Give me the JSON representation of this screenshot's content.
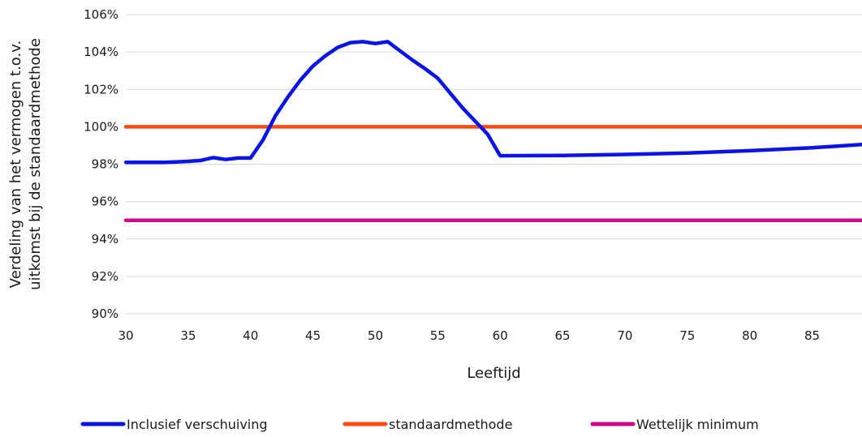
{
  "chart_data": {
    "type": "line",
    "title": "",
    "xlabel": "Leeftijd",
    "ylabel_lines": [
      "Verdeling van het vermogen t.o.v.",
      "uitkomst bij de standaardmethode"
    ],
    "xlim": [
      30,
      89
    ],
    "ylim": [
      90,
      106
    ],
    "x_ticks": [
      30,
      35,
      40,
      45,
      50,
      55,
      60,
      65,
      70,
      75,
      80,
      85
    ],
    "y_ticks": [
      90,
      92,
      94,
      96,
      98,
      100,
      102,
      104,
      106
    ],
    "y_tick_labels": [
      "90%",
      "92%",
      "94%",
      "96%",
      "98%",
      "100%",
      "102%",
      "104%",
      "106%"
    ],
    "grid": "horizontal",
    "legend_position": "bottom",
    "series": [
      {
        "name": "Inclusief verschuiving",
        "color": "#0a14e6",
        "x": [
          30,
          31,
          32,
          33,
          34,
          35,
          36,
          37,
          38,
          39,
          40,
          41,
          42,
          43,
          44,
          45,
          46,
          47,
          48,
          49,
          50,
          51,
          52,
          53,
          54,
          55,
          56,
          57,
          58,
          59,
          60,
          65,
          70,
          75,
          80,
          85,
          89
        ],
        "y": [
          98.1,
          98.1,
          98.1,
          98.1,
          98.12,
          98.15,
          98.2,
          98.35,
          98.25,
          98.33,
          98.33,
          99.3,
          100.6,
          101.6,
          102.5,
          103.25,
          103.8,
          104.25,
          104.5,
          104.55,
          104.45,
          104.55,
          104.05,
          103.55,
          103.1,
          102.6,
          101.8,
          101.0,
          100.3,
          99.6,
          98.45,
          98.47,
          98.52,
          98.6,
          98.72,
          98.88,
          99.05
        ]
      },
      {
        "name": "standaardmethode",
        "color": "#ff4a14",
        "x": [
          30,
          89
        ],
        "y": [
          100,
          100
        ]
      },
      {
        "name": "Wettelijk minimum",
        "color": "#cc0a8c",
        "x": [
          30,
          89
        ],
        "y": [
          95,
          95
        ]
      }
    ]
  }
}
